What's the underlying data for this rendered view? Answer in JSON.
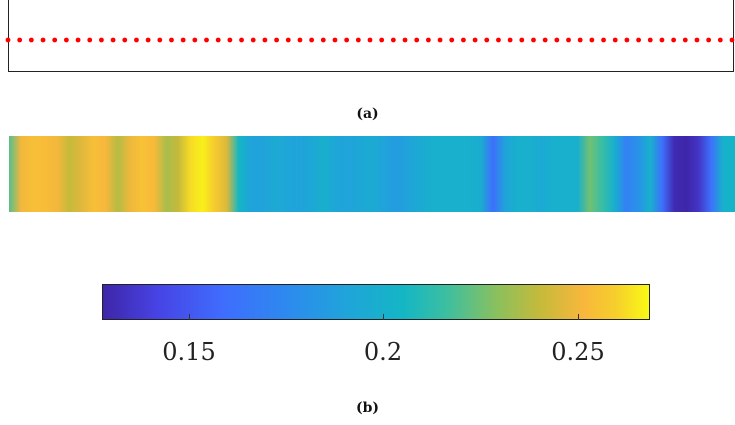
{
  "panel_a": {
    "caption": "(a)",
    "dot_color": "#ff0000",
    "dot_count": 63
  },
  "panel_b": {
    "caption": "(b)",
    "colormap": "parula",
    "strip_values": [
      0.22,
      0.25,
      0.254,
      0.253,
      0.25,
      0.24,
      0.246,
      0.254,
      0.251,
      0.237,
      0.249,
      0.255,
      0.252,
      0.235,
      0.24,
      0.262,
      0.266,
      0.258,
      0.245,
      0.205,
      0.19,
      0.19,
      0.195,
      0.192,
      0.19,
      0.193,
      0.2,
      0.192,
      0.19,
      0.193,
      0.196,
      0.19,
      0.185,
      0.19,
      0.195,
      0.2,
      0.2,
      0.2,
      0.2,
      0.197,
      0.16,
      0.19,
      0.2,
      0.2,
      0.195,
      0.2,
      0.2,
      0.2,
      0.225,
      0.215,
      0.2,
      0.17,
      0.18,
      0.2,
      0.16,
      0.13,
      0.128,
      0.135,
      0.16,
      0.2,
      0.205
    ],
    "colorbar": {
      "min": 0.128,
      "max": 0.268,
      "ticks": [
        0.15,
        0.2,
        0.25
      ],
      "tick_labels": [
        "0.15",
        "0.2",
        "0.25"
      ]
    }
  }
}
